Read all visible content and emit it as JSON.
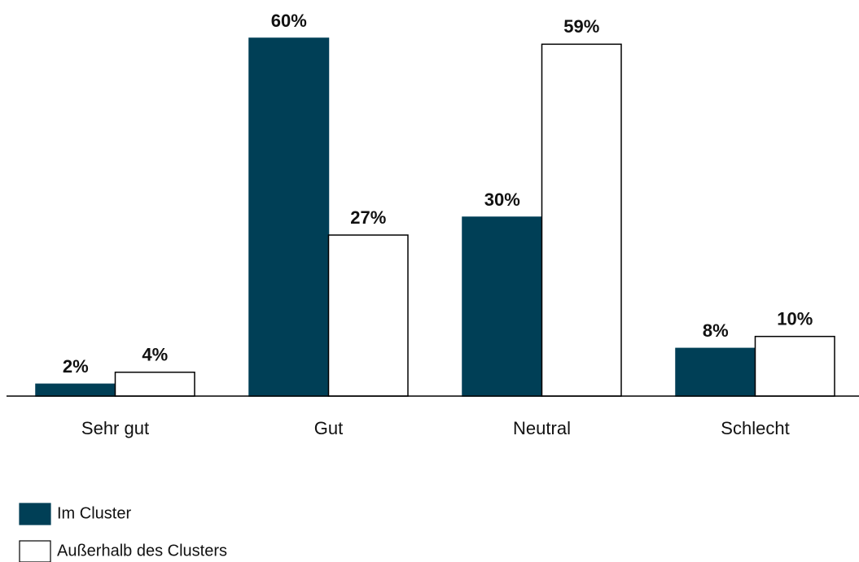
{
  "chart_data": {
    "type": "bar",
    "categories": [
      "Sehr gut",
      "Gut",
      "Neutral",
      "Schlecht"
    ],
    "series": [
      {
        "name": "Im Cluster",
        "color": "#003f56",
        "values": [
          2,
          60,
          30,
          8
        ],
        "value_labels": [
          "2%",
          "60%",
          "30%",
          "8%"
        ]
      },
      {
        "name": "Außerhalb des Clusters",
        "color": "#ffffff",
        "values": [
          4,
          27,
          59,
          10
        ],
        "value_labels": [
          "4%",
          "27%",
          "59%",
          "10%"
        ]
      }
    ]
  }
}
